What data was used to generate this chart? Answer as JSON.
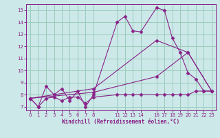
{
  "background_color": "#cce8e8",
  "grid_color": "#99ccbb",
  "line_color": "#882288",
  "xlabel": "Windchill (Refroidissement éolien,°C)",
  "xlim": [
    -0.5,
    23.5
  ],
  "ylim": [
    6.7,
    15.5
  ],
  "xticks": [
    0,
    1,
    2,
    3,
    4,
    5,
    6,
    7,
    8,
    11,
    12,
    13,
    14,
    16,
    17,
    18,
    19,
    20,
    21,
    22,
    23
  ],
  "yticks": [
    7,
    8,
    9,
    10,
    11,
    12,
    13,
    14,
    15
  ],
  "series1_x": [
    0,
    1,
    2,
    3,
    4,
    5,
    6,
    7,
    8,
    11,
    12,
    13,
    14,
    16,
    17,
    18,
    19,
    20,
    21,
    22,
    23
  ],
  "series1_y": [
    7.7,
    7.0,
    8.7,
    8.0,
    8.5,
    7.5,
    8.3,
    7.0,
    8.0,
    14.0,
    14.5,
    13.3,
    13.2,
    15.2,
    15.0,
    12.7,
    11.5,
    9.8,
    9.3,
    8.3,
    8.3
  ],
  "series2_x": [
    0,
    1,
    2,
    3,
    4,
    5,
    6,
    7,
    8,
    11,
    12,
    13,
    14,
    16,
    17,
    18,
    19,
    20,
    21,
    22,
    23
  ],
  "series2_y": [
    7.7,
    7.0,
    7.7,
    7.8,
    7.5,
    7.8,
    7.8,
    7.3,
    7.8,
    8.0,
    8.0,
    8.0,
    8.0,
    8.0,
    8.0,
    8.0,
    8.0,
    8.0,
    8.3,
    8.3,
    8.3
  ],
  "series3_x": [
    0,
    8,
    16,
    20,
    23
  ],
  "series3_y": [
    7.7,
    8.5,
    12.5,
    11.5,
    8.3
  ],
  "series4_x": [
    0,
    8,
    16,
    20,
    23
  ],
  "series4_y": [
    7.7,
    8.2,
    9.5,
    11.5,
    8.3
  ]
}
